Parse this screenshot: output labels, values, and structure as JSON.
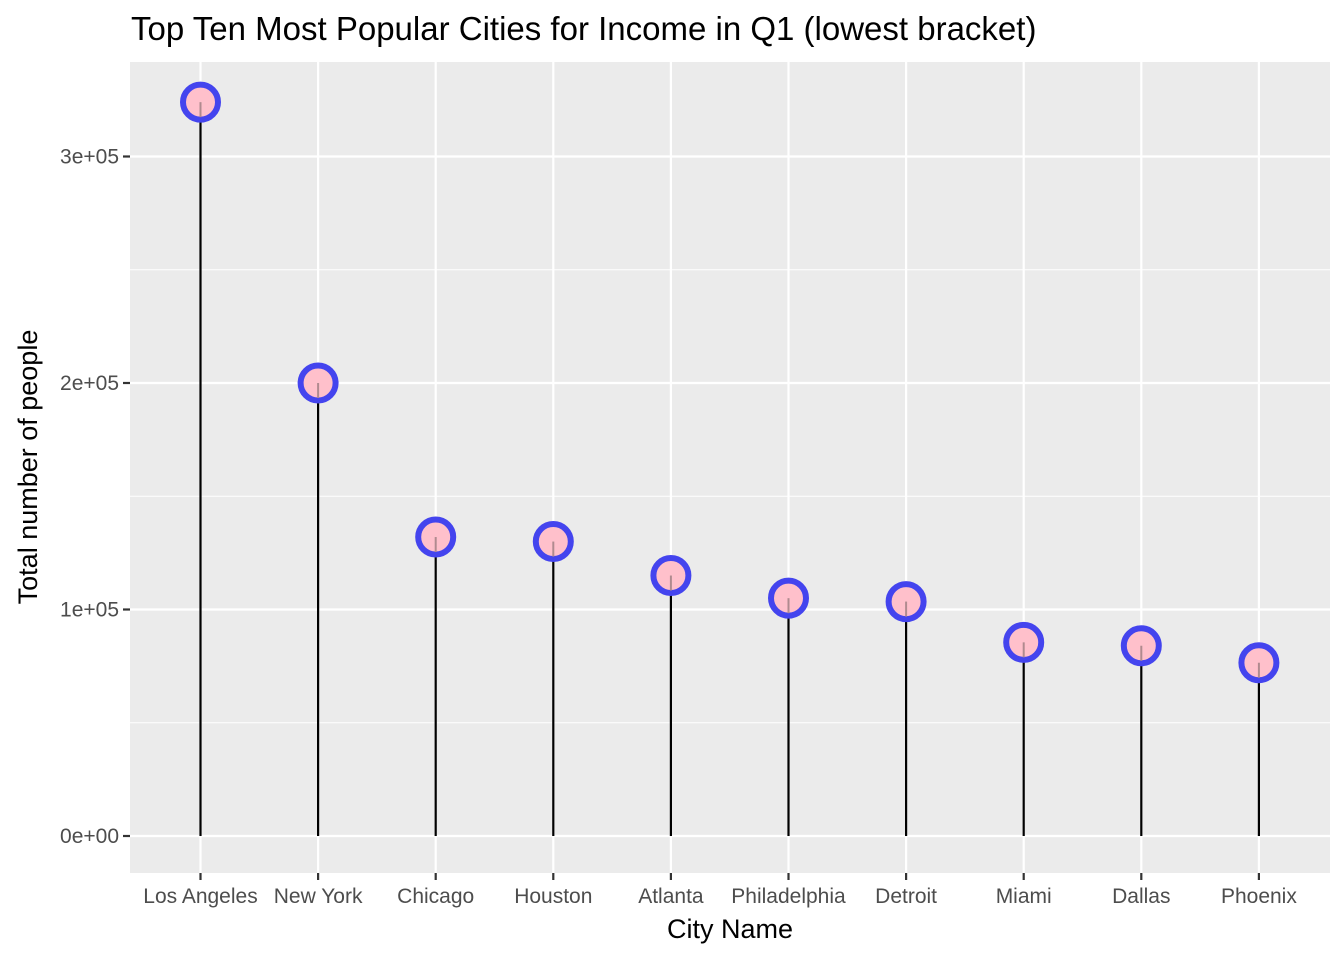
{
  "chart_data": {
    "type": "lollipop",
    "title": "Top Ten Most Popular Cities for Income in Q1 (lowest bracket)",
    "xlabel": "City Name",
    "ylabel": "Total number of people",
    "categories": [
      "Los Angeles",
      "New York",
      "Chicago",
      "Houston",
      "Atlanta",
      "Philadelphia",
      "Detroit",
      "Miami",
      "Dallas",
      "Phoenix"
    ],
    "values": [
      324000,
      200000,
      132000,
      130000,
      115000,
      105000,
      103500,
      85500,
      84000,
      76500
    ],
    "ylim": [
      -16500,
      340500
    ],
    "yticks": [
      0,
      100000,
      200000,
      300000
    ],
    "ytick_labels": [
      "0e+00",
      "1e+05",
      "2e+05",
      "3e+05"
    ],
    "grid": true,
    "colors": {
      "panel_background": "#EBEBEB",
      "grid": "#FFFFFF",
      "stem": "#000000",
      "point_fill": "#FFC0CB",
      "point_stroke": "#4444EE"
    }
  }
}
